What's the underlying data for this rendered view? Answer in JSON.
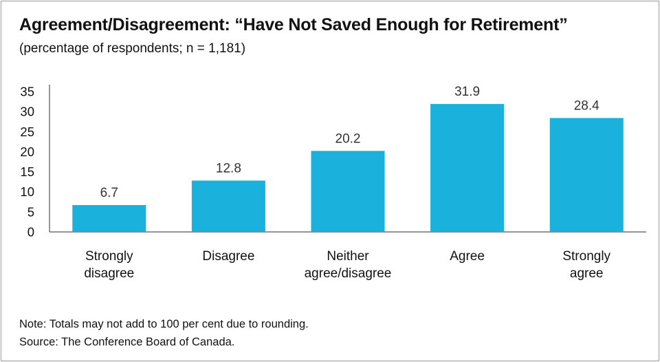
{
  "title": "Agreement/Disagreement: “Have Not Saved Enough for Retirement”",
  "subtitle": "(percentage of respondents; n = 1,181)",
  "notes": {
    "note": "Note: Totals may not add to 100 per cent due to rounding.",
    "source": "Source: The Conference Board of Canada."
  },
  "colors": {
    "bar": "#1ab2dd",
    "axis": "#555555",
    "text": "#111111",
    "value_label": "#333333"
  },
  "chart_data": {
    "type": "bar",
    "categories": [
      [
        "Strongly",
        "disagree"
      ],
      [
        "Disagree"
      ],
      [
        "Neither",
        "agree/disagree"
      ],
      [
        "Agree"
      ],
      [
        "Strongly",
        "agree"
      ]
    ],
    "values": [
      6.7,
      12.8,
      20.2,
      31.9,
      28.4
    ],
    "value_labels": [
      "6.7",
      "12.8",
      "20.2",
      "31.9",
      "28.4"
    ],
    "yticks": [
      0,
      5,
      10,
      15,
      20,
      25,
      30,
      35
    ],
    "ylim": [
      0,
      35
    ],
    "xlabel": "",
    "ylabel": "",
    "grid": false,
    "legend": "none"
  }
}
